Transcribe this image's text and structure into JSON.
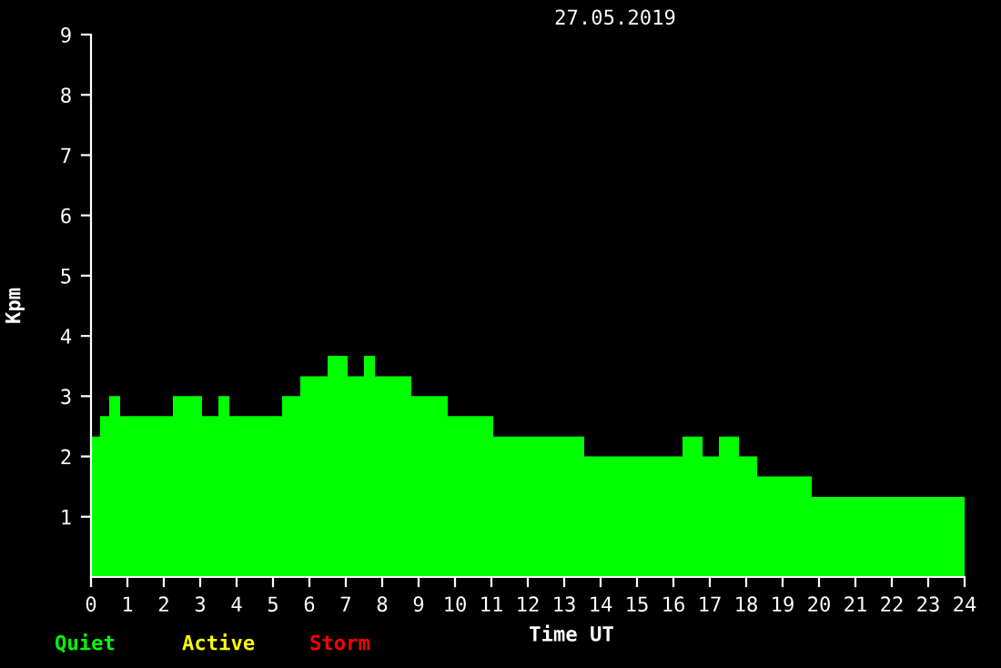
{
  "chart_data": {
    "type": "histogram",
    "title": "27.05.2019",
    "xlabel": "Time UT",
    "ylabel": "Kpm",
    "bins": [
      0,
      0.25,
      0.5,
      0.8,
      2.25,
      3.05,
      3.5,
      3.8,
      5.25,
      5.75,
      6.5,
      7.05,
      7.5,
      7.8,
      8.8,
      9.8,
      11.05,
      13.55,
      16.25,
      16.8,
      17.25,
      17.8,
      18.3,
      19.8,
      24
    ],
    "values": [
      2.33,
      2.67,
      3,
      2.67,
      3,
      2.67,
      3,
      2.67,
      3,
      3.33,
      3.67,
      3.33,
      3.67,
      3.33,
      3,
      2.67,
      2.33,
      2,
      2.33,
      2,
      2.33,
      2,
      1.67,
      1.33
    ],
    "color": "#00ff00",
    "xlim": [
      0,
      24
    ],
    "xticks": [
      0,
      1,
      2,
      3,
      4,
      5,
      6,
      7,
      8,
      9,
      10,
      11,
      12,
      13,
      14,
      15,
      16,
      17,
      18,
      19,
      20,
      21,
      22,
      23,
      24
    ],
    "ylim": [
      0,
      9
    ],
    "yticks": [
      1,
      2,
      3,
      4,
      5,
      6,
      7,
      8,
      9
    ],
    "annotations": [
      "Quiet",
      "Active",
      "Storm"
    ],
    "grid": false,
    "legend": false
  }
}
